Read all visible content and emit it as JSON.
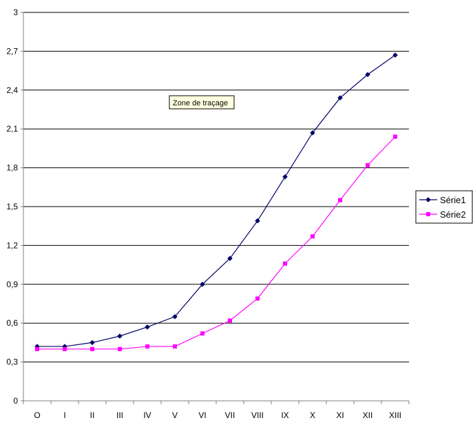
{
  "tooltip": {
    "text": "Zone de traçage"
  },
  "colors": {
    "background": "#ffffff",
    "gridline": "#000000",
    "axis": "#808080",
    "tooltip_bg": "#ffffe1"
  },
  "chart_data": {
    "type": "line",
    "categories": [
      "O",
      "I",
      "II",
      "III",
      "IV",
      "V",
      "VI",
      "VII",
      "VIII",
      "IX",
      "X",
      "XI",
      "XII",
      "XIII"
    ],
    "series": [
      {
        "name": "Série1",
        "color": "#000066",
        "marker": "diamond",
        "values": [
          0.42,
          0.42,
          0.45,
          0.5,
          0.57,
          0.65,
          0.9,
          1.1,
          1.39,
          1.73,
          2.07,
          2.34,
          2.52,
          2.67
        ]
      },
      {
        "name": "Série2",
        "color": "#ff00ff",
        "marker": "square",
        "values": [
          0.4,
          0.4,
          0.4,
          0.4,
          0.42,
          0.42,
          0.52,
          0.62,
          0.79,
          1.06,
          1.27,
          1.55,
          1.82,
          2.04
        ]
      }
    ],
    "ylim": [
      0,
      3
    ],
    "yticks": [
      0,
      0.3,
      0.6,
      0.9,
      1.2,
      1.5,
      1.8,
      2.1,
      2.4,
      2.7,
      3
    ],
    "ytick_labels": [
      "0",
      "0,3",
      "0,6",
      "0,9",
      "1,2",
      "1,5",
      "1,8",
      "2,1",
      "2,4",
      "2,7",
      "3"
    ],
    "grid": true,
    "legend_position": "right"
  }
}
